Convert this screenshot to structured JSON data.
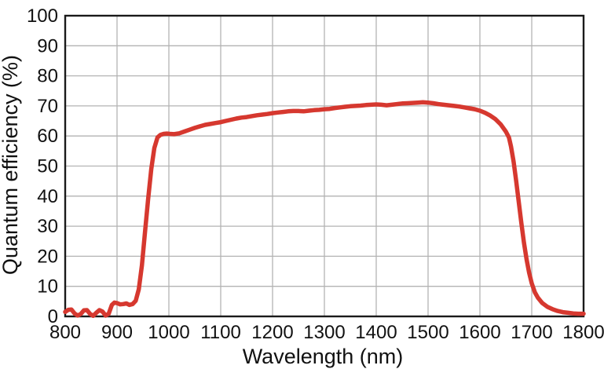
{
  "chart_data": {
    "type": "line",
    "title": "",
    "xlabel": "Wavelength (nm)",
    "ylabel": "Quantum efficiency (%)",
    "xlim": [
      800,
      1800
    ],
    "ylim": [
      0,
      100
    ],
    "x_ticks": [
      800,
      900,
      1000,
      1100,
      1200,
      1300,
      1400,
      1500,
      1600,
      1700,
      1800
    ],
    "y_ticks": [
      0,
      10,
      20,
      30,
      40,
      50,
      60,
      70,
      80,
      90,
      100
    ],
    "grid": true,
    "legend": "none",
    "colors": {
      "line": "#d6382f",
      "grid": "#b3b3b3",
      "axis": "#1a1a1a",
      "text": "#111111",
      "background": "#ffffff"
    },
    "line_width": 5.5,
    "series": [
      {
        "name": "Quantum efficiency",
        "x": [
          800,
          806,
          812,
          818,
          824,
          830,
          836,
          842,
          848,
          854,
          860,
          866,
          872,
          878,
          884,
          890,
          895,
          900,
          906,
          912,
          918,
          924,
          930,
          936,
          942,
          948,
          954,
          960,
          966,
          972,
          978,
          984,
          990,
          996,
          1002,
          1010,
          1020,
          1030,
          1040,
          1050,
          1060,
          1070,
          1080,
          1090,
          1100,
          1110,
          1120,
          1130,
          1140,
          1150,
          1160,
          1170,
          1180,
          1190,
          1200,
          1210,
          1220,
          1230,
          1240,
          1250,
          1260,
          1270,
          1280,
          1290,
          1300,
          1310,
          1320,
          1330,
          1340,
          1350,
          1360,
          1370,
          1380,
          1390,
          1400,
          1410,
          1420,
          1430,
          1440,
          1450,
          1460,
          1470,
          1480,
          1490,
          1500,
          1510,
          1520,
          1530,
          1540,
          1550,
          1560,
          1570,
          1580,
          1590,
          1600,
          1610,
          1620,
          1630,
          1640,
          1650,
          1656,
          1660,
          1665,
          1670,
          1675,
          1680,
          1685,
          1690,
          1695,
          1700,
          1706,
          1712,
          1720,
          1730,
          1740,
          1750,
          1760,
          1770,
          1780,
          1790,
          1800
        ],
        "y": [
          1.5,
          2.2,
          2.3,
          1.0,
          0.3,
          0.8,
          2.0,
          2.1,
          0.8,
          0.2,
          1.2,
          2.1,
          1.6,
          0.3,
          0.9,
          3.8,
          4.6,
          4.4,
          4.0,
          4.1,
          4.3,
          3.8,
          4.1,
          5.2,
          9.0,
          17.0,
          28.0,
          39.0,
          49.0,
          56.0,
          59.5,
          60.4,
          60.7,
          60.8,
          60.7,
          60.6,
          60.9,
          61.5,
          62.1,
          62.7,
          63.2,
          63.7,
          64.0,
          64.3,
          64.6,
          65.0,
          65.4,
          65.8,
          66.1,
          66.3,
          66.6,
          66.9,
          67.1,
          67.3,
          67.6,
          67.8,
          68.0,
          68.2,
          68.3,
          68.3,
          68.2,
          68.4,
          68.6,
          68.7,
          68.9,
          69.0,
          69.3,
          69.5,
          69.7,
          69.9,
          70.0,
          70.1,
          70.3,
          70.4,
          70.5,
          70.4,
          70.2,
          70.4,
          70.6,
          70.8,
          70.9,
          71.0,
          71.1,
          71.2,
          71.1,
          70.9,
          70.6,
          70.4,
          70.2,
          70.0,
          69.8,
          69.5,
          69.2,
          68.9,
          68.4,
          67.7,
          66.8,
          65.6,
          63.9,
          61.5,
          59.5,
          56.5,
          51.5,
          45.0,
          38.0,
          31.0,
          24.5,
          19.0,
          14.5,
          11.0,
          8.0,
          6.2,
          4.5,
          3.2,
          2.4,
          1.8,
          1.4,
          1.2,
          1.0,
          0.9,
          0.9
        ]
      }
    ]
  }
}
